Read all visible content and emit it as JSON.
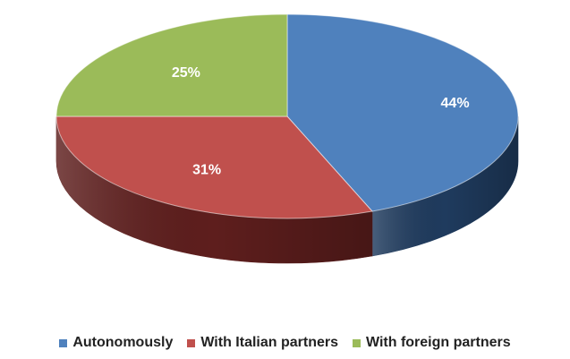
{
  "chart_data": {
    "type": "pie",
    "style": "3d",
    "categories": [
      "Autonomously",
      "With Italian partners",
      "With foreign partners"
    ],
    "values": [
      44,
      31,
      25
    ],
    "data_labels": [
      "44%",
      "31%",
      "25%"
    ],
    "colors": [
      "#4f81bd",
      "#c0504d",
      "#9bbb59"
    ],
    "side_colors": [
      "#1f3b5e",
      "#5e1e1d",
      "#4c6128"
    ],
    "legend_position": "bottom"
  }
}
